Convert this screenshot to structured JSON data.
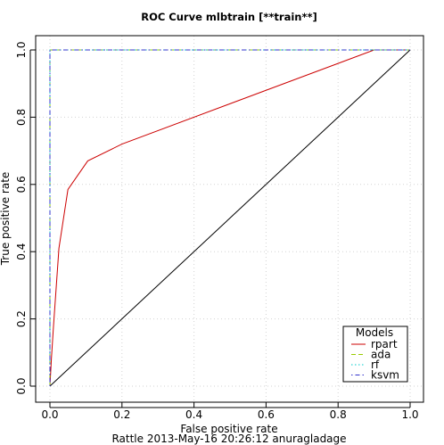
{
  "chart_data": {
    "type": "line",
    "title": "ROC Curve  mlbtrain [**train**]",
    "xlabel": "False positive rate",
    "ylabel": "True positive rate",
    "xlim": [
      0,
      1
    ],
    "ylim": [
      0,
      1
    ],
    "x_ticks": [
      "0.0",
      "0.2",
      "0.4",
      "0.6",
      "0.8",
      "1.0"
    ],
    "y_ticks": [
      "0.0",
      "0.2",
      "0.4",
      "0.6",
      "0.8",
      "1.0"
    ],
    "grid": true,
    "legend": {
      "title": "Models",
      "placement": "bottom-right"
    },
    "series": [
      {
        "name": "rpart",
        "color": "#cc0000",
        "dash": "solid",
        "x": [
          0,
          0.004,
          0.01,
          0.025,
          0.05,
          0.105,
          0.2,
          0.9,
          1.0
        ],
        "y": [
          0,
          0.08,
          0.18,
          0.41,
          0.585,
          0.67,
          0.72,
          1.0,
          1.0
        ]
      },
      {
        "name": "ada",
        "color": "#99cc00",
        "dash": "dashed",
        "x": [
          0,
          0,
          1.0
        ],
        "y": [
          0,
          1.0,
          1.0
        ]
      },
      {
        "name": "rf",
        "color": "#00cccc",
        "dash": "dotted",
        "x": [
          0,
          0,
          1.0
        ],
        "y": [
          0,
          1.0,
          1.0
        ]
      },
      {
        "name": "ksvm",
        "color": "#3333cc",
        "dash": "dotdash",
        "x": [
          0,
          0,
          1.0
        ],
        "y": [
          0,
          1.0,
          1.0
        ]
      }
    ],
    "reference_line": {
      "x": [
        0,
        1
      ],
      "y": [
        0,
        1
      ],
      "color": "#000000"
    }
  },
  "footer": "Rattle 2013-May-16 20:26:12 anuragladage"
}
